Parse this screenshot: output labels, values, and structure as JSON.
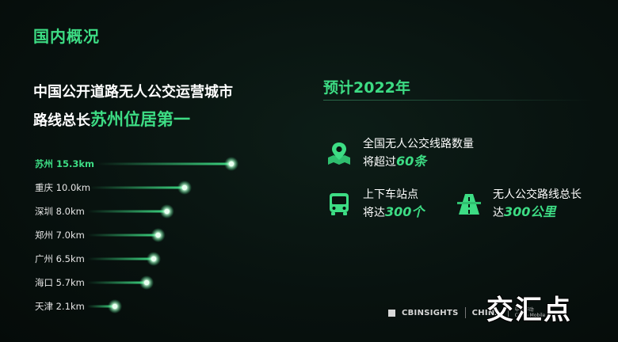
{
  "section_title": "国内概况",
  "headline": {
    "line1": "中国公开道路无人公交运营城市",
    "line2_prefix": "路线总长",
    "line2_highlight": "苏州位居第一"
  },
  "chart_data": {
    "type": "bar",
    "orientation": "horizontal",
    "unit": "km",
    "categories": [
      "苏州",
      "重庆",
      "深圳",
      "郑州",
      "广州",
      "海口",
      "天津"
    ],
    "values": [
      15.3,
      10.0,
      8.0,
      7.0,
      6.5,
      5.7,
      2.1
    ],
    "labels": [
      "苏州 15.3km",
      "重庆 10.0km",
      "深圳 8.0km",
      "郑州 7.0km",
      "广州 6.5km",
      "海口 5.7km",
      "天津 2.1km"
    ],
    "highlight_index": 0,
    "colors": {
      "highlight": "#3ddc84",
      "normal": "#2fbf6f"
    }
  },
  "forecast": {
    "title": "预计2022年",
    "stats": [
      {
        "icon": "map-pin-icon",
        "text1": "全国无人公交线路数量",
        "text2_prefix": "将超过",
        "value": "60条",
        "text2_suffix": ""
      },
      {
        "icon": "bus-icon",
        "text1": "上下车站点",
        "text2_prefix": "将达",
        "value": "300个",
        "text2_suffix": ""
      },
      {
        "icon": "road-icon",
        "text1": "无人公交路线总长",
        "text2_prefix": "达",
        "value": "300公里",
        "text2_suffix": ""
      }
    ]
  },
  "footer": {
    "brand": "CBINSIGHTS",
    "region": "CHINA",
    "partner_line1": "中国移动",
    "partner_line2": "China Mobile"
  },
  "watermark": "交汇点",
  "colors": {
    "accent": "#3ddc84",
    "background": "#08120f"
  }
}
